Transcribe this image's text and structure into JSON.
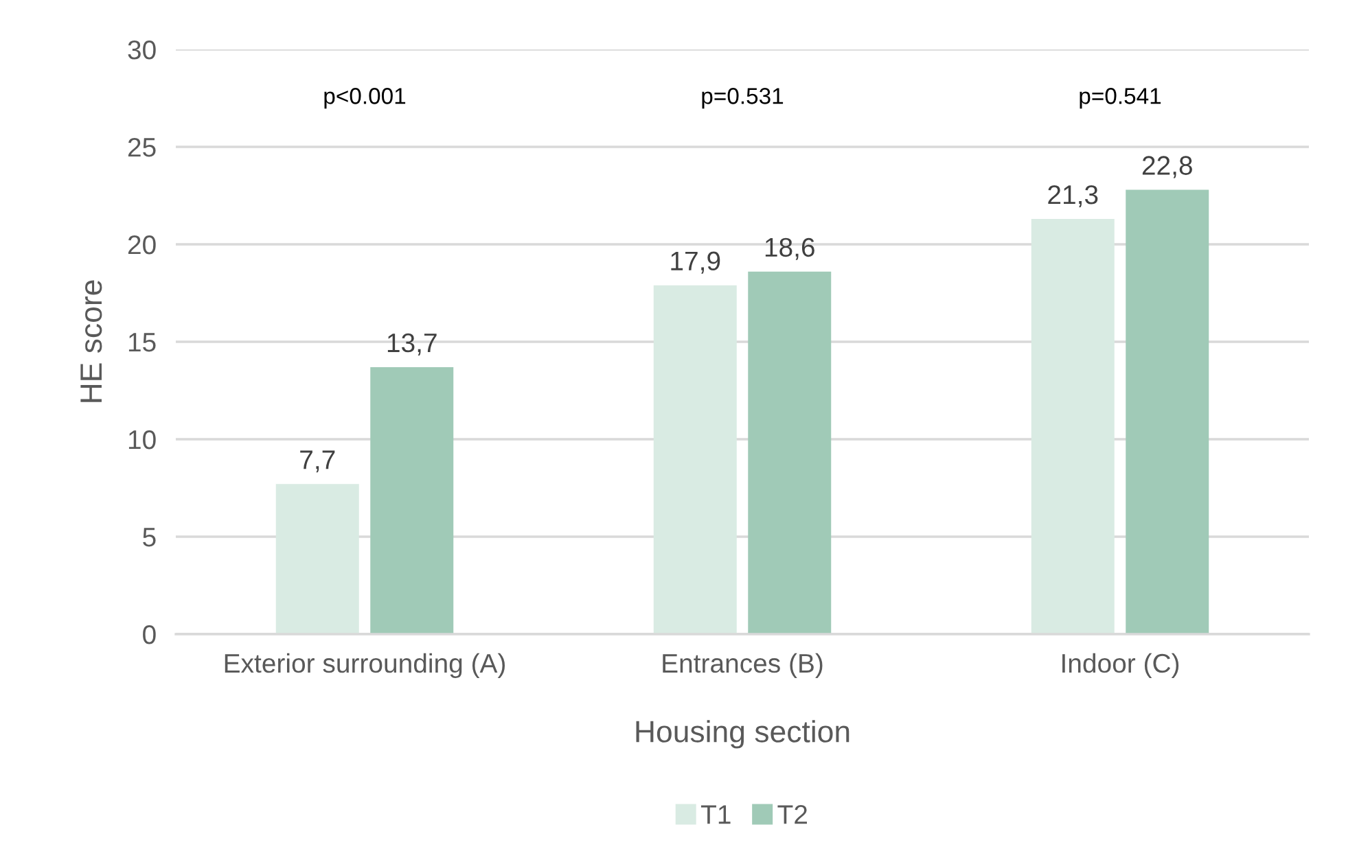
{
  "chart_data": {
    "type": "bar",
    "xlabel": "Housing section",
    "ylabel": "HE score",
    "categories": [
      "Exterior surrounding (A)",
      "Entrances (B)",
      "Indoor (C)"
    ],
    "series": [
      {
        "name": "T1",
        "color": "#d9ebe3",
        "values": [
          7.7,
          17.9,
          21.3
        ],
        "value_labels": [
          "7,7",
          "17,9",
          "21,3"
        ]
      },
      {
        "name": "T2",
        "color": "#a0cab7",
        "values": [
          13.7,
          18.6,
          22.8
        ],
        "value_labels": [
          "13,7",
          "18,6",
          "22,8"
        ]
      }
    ],
    "ylim": [
      0,
      30
    ],
    "yticks": [
      0,
      5,
      10,
      15,
      20,
      25,
      30
    ],
    "grid": "y",
    "legend": "bottom",
    "annotations": [
      "p<0.001",
      "p=0.531",
      "p=0.541"
    ]
  }
}
